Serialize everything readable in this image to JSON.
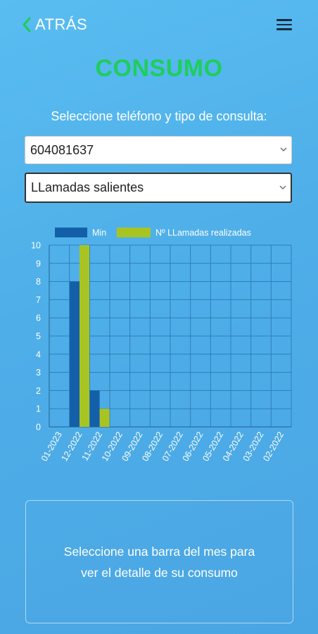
{
  "header": {
    "back_label": "ATRÁS",
    "back_icon": "chevron-left-icon",
    "menu_icon": "hamburger-menu-icon"
  },
  "page_title": "CONSUMO",
  "subtitle": "Seleccione teléfono y tipo de consulta:",
  "phone_select": {
    "value": "604081637"
  },
  "type_select": {
    "value": "LLamadas salientes"
  },
  "info_text": "Seleccione una barra del mes para ver el detalle de su consumo",
  "colors": {
    "title": "#1fcd5d",
    "back_arrow": "#1fcd5d",
    "series_min": "#1460a8",
    "series_calls": "#a8c423",
    "grid": "#2f7fb8"
  },
  "chart_data": {
    "type": "bar",
    "categories": [
      "01-2023",
      "12-2022",
      "11-2022",
      "10-2022",
      "09-2022",
      "08-2022",
      "07-2022",
      "06-2022",
      "05-2022",
      "04-2022",
      "03-2022",
      "02-2022"
    ],
    "series": [
      {
        "name": "Min",
        "values": [
          0,
          8,
          2,
          0,
          0,
          0,
          0,
          0,
          0,
          0,
          0,
          0
        ]
      },
      {
        "name": "Nº LLamadas realizadas",
        "values": [
          0,
          10,
          1,
          0,
          0,
          0,
          0,
          0,
          0,
          0,
          0,
          0
        ]
      }
    ],
    "ylim": [
      0,
      10
    ],
    "yticks": [
      0,
      1,
      2,
      3,
      4,
      5,
      6,
      7,
      8,
      9,
      10
    ],
    "grid": true,
    "legend_position": "top"
  }
}
